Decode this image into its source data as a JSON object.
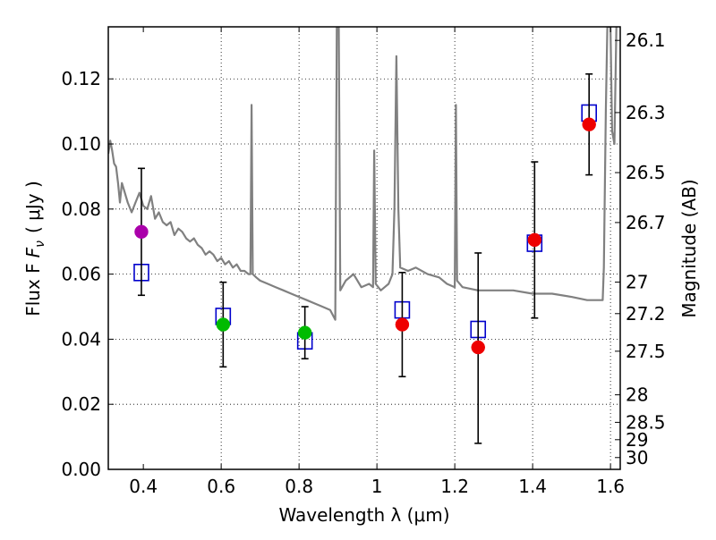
{
  "chart_data": {
    "type": "scatter",
    "xlabel": "Wavelength  λ (μm)",
    "ylabel": "Flux  F",
    "ylabel_subscript": "ν",
    "ylabel_units": "( μJy )",
    "y2label": "Magnitude (AB)",
    "xlim": [
      0.31,
      1.625
    ],
    "ylim": [
      0.0,
      0.136
    ],
    "grid": true,
    "x_ticks": [
      0.4,
      0.6,
      0.8,
      1.0,
      1.2,
      1.4,
      1.6
    ],
    "x_tick_labels": [
      "0.4",
      "0.6",
      "0.8",
      "1",
      "1.2",
      "1.4",
      "1.6"
    ],
    "y_ticks": [
      0.0,
      0.02,
      0.04,
      0.06,
      0.08,
      0.1,
      0.12
    ],
    "y_tick_labels": [
      "0.00",
      "0.02",
      "0.04",
      "0.06",
      "0.08",
      "0.10",
      "0.12"
    ],
    "mag_ticks": [
      {
        "mag": 26.1,
        "label": "26.1"
      },
      {
        "mag": 26.3,
        "label": "26.3"
      },
      {
        "mag": 26.5,
        "label": "26.5"
      },
      {
        "mag": 26.7,
        "label": "26.7"
      },
      {
        "mag": 27.0,
        "label": "27"
      },
      {
        "mag": 27.2,
        "label": "27.2"
      },
      {
        "mag": 27.5,
        "label": "27.5"
      },
      {
        "mag": 28.0,
        "label": "28"
      },
      {
        "mag": 28.5,
        "label": "28.5"
      },
      {
        "mag": 29.0,
        "label": "29"
      },
      {
        "mag": 30.0,
        "label": "30"
      }
    ],
    "series": [
      {
        "name": "model spectrum",
        "kind": "line",
        "color": "#808080",
        "points": [
          [
            0.31,
            0.097
          ],
          [
            0.315,
            0.101
          ],
          [
            0.32,
            0.098
          ],
          [
            0.325,
            0.094
          ],
          [
            0.33,
            0.093
          ],
          [
            0.335,
            0.088
          ],
          [
            0.34,
            0.082
          ],
          [
            0.345,
            0.088
          ],
          [
            0.35,
            0.086
          ],
          [
            0.36,
            0.082
          ],
          [
            0.37,
            0.079
          ],
          [
            0.38,
            0.082
          ],
          [
            0.39,
            0.085
          ],
          [
            0.4,
            0.081
          ],
          [
            0.41,
            0.08
          ],
          [
            0.42,
            0.084
          ],
          [
            0.43,
            0.077
          ],
          [
            0.44,
            0.079
          ],
          [
            0.45,
            0.076
          ],
          [
            0.46,
            0.075
          ],
          [
            0.47,
            0.076
          ],
          [
            0.48,
            0.072
          ],
          [
            0.49,
            0.074
          ],
          [
            0.5,
            0.073
          ],
          [
            0.51,
            0.071
          ],
          [
            0.52,
            0.07
          ],
          [
            0.53,
            0.071
          ],
          [
            0.54,
            0.069
          ],
          [
            0.55,
            0.068
          ],
          [
            0.56,
            0.066
          ],
          [
            0.57,
            0.067
          ],
          [
            0.58,
            0.066
          ],
          [
            0.59,
            0.064
          ],
          [
            0.6,
            0.065
          ],
          [
            0.61,
            0.063
          ],
          [
            0.62,
            0.064
          ],
          [
            0.63,
            0.062
          ],
          [
            0.64,
            0.063
          ],
          [
            0.65,
            0.061
          ],
          [
            0.66,
            0.061
          ],
          [
            0.67,
            0.06
          ],
          [
            0.675,
            0.06
          ],
          [
            0.678,
            0.112
          ],
          [
            0.681,
            0.06
          ],
          [
            0.69,
            0.059
          ],
          [
            0.7,
            0.058
          ],
          [
            0.72,
            0.057
          ],
          [
            0.74,
            0.056
          ],
          [
            0.76,
            0.055
          ],
          [
            0.78,
            0.054
          ],
          [
            0.8,
            0.053
          ],
          [
            0.82,
            0.052
          ],
          [
            0.84,
            0.051
          ],
          [
            0.86,
            0.05
          ],
          [
            0.88,
            0.049
          ],
          [
            0.893,
            0.046
          ],
          [
            0.897,
            0.136
          ],
          [
            0.902,
            0.136
          ],
          [
            0.906,
            0.055
          ],
          [
            0.92,
            0.058
          ],
          [
            0.94,
            0.06
          ],
          [
            0.96,
            0.056
          ],
          [
            0.98,
            0.057
          ],
          [
            0.99,
            0.056
          ],
          [
            0.993,
            0.098
          ],
          [
            0.997,
            0.057
          ],
          [
            1.01,
            0.055
          ],
          [
            1.02,
            0.056
          ],
          [
            1.03,
            0.057
          ],
          [
            1.04,
            0.06
          ],
          [
            1.045,
            0.08
          ],
          [
            1.05,
            0.127
          ],
          [
            1.055,
            0.08
          ],
          [
            1.06,
            0.062
          ],
          [
            1.08,
            0.061
          ],
          [
            1.1,
            0.062
          ],
          [
            1.13,
            0.06
          ],
          [
            1.16,
            0.059
          ],
          [
            1.18,
            0.057
          ],
          [
            1.2,
            0.056
          ],
          [
            1.203,
            0.112
          ],
          [
            1.206,
            0.058
          ],
          [
            1.22,
            0.056
          ],
          [
            1.26,
            0.055
          ],
          [
            1.3,
            0.055
          ],
          [
            1.35,
            0.055
          ],
          [
            1.4,
            0.054
          ],
          [
            1.45,
            0.054
          ],
          [
            1.5,
            0.053
          ],
          [
            1.54,
            0.052
          ],
          [
            1.57,
            0.052
          ],
          [
            1.58,
            0.052
          ],
          [
            1.583,
            0.062
          ],
          [
            1.588,
            0.11
          ],
          [
            1.592,
            0.136
          ],
          [
            1.6,
            0.136
          ],
          [
            1.604,
            0.104
          ],
          [
            1.61,
            0.1
          ],
          [
            1.615,
            0.136
          ]
        ]
      },
      {
        "name": "model photometry",
        "kind": "marker",
        "marker": "square-open",
        "color": "#0000cc",
        "points": [
          {
            "x": 0.395,
            "y": 0.0605
          },
          {
            "x": 0.605,
            "y": 0.047
          },
          {
            "x": 0.815,
            "y": 0.0395
          },
          {
            "x": 1.065,
            "y": 0.049
          },
          {
            "x": 1.26,
            "y": 0.043
          },
          {
            "x": 1.405,
            "y": 0.0695
          },
          {
            "x": 1.545,
            "y": 0.1095
          }
        ]
      },
      {
        "name": "observed photometry",
        "kind": "marker-errorbar",
        "marker": "circle",
        "points": [
          {
            "x": 0.395,
            "y": 0.073,
            "lo": 0.0535,
            "hi": 0.0925,
            "color": "#aa00aa"
          },
          {
            "x": 0.605,
            "y": 0.0445,
            "lo": 0.0315,
            "hi": 0.0575,
            "color": "#00bb00"
          },
          {
            "x": 0.815,
            "y": 0.042,
            "lo": 0.034,
            "hi": 0.05,
            "color": "#00bb00"
          },
          {
            "x": 1.065,
            "y": 0.0445,
            "lo": 0.0285,
            "hi": 0.0605,
            "color": "#ee0000"
          },
          {
            "x": 1.26,
            "y": 0.0375,
            "lo": 0.008,
            "hi": 0.0665,
            "color": "#ee0000"
          },
          {
            "x": 1.405,
            "y": 0.0705,
            "lo": 0.0465,
            "hi": 0.0945,
            "color": "#ee0000"
          },
          {
            "x": 1.545,
            "y": 0.106,
            "lo": 0.0905,
            "hi": 0.1215,
            "color": "#ee0000"
          }
        ]
      }
    ]
  }
}
